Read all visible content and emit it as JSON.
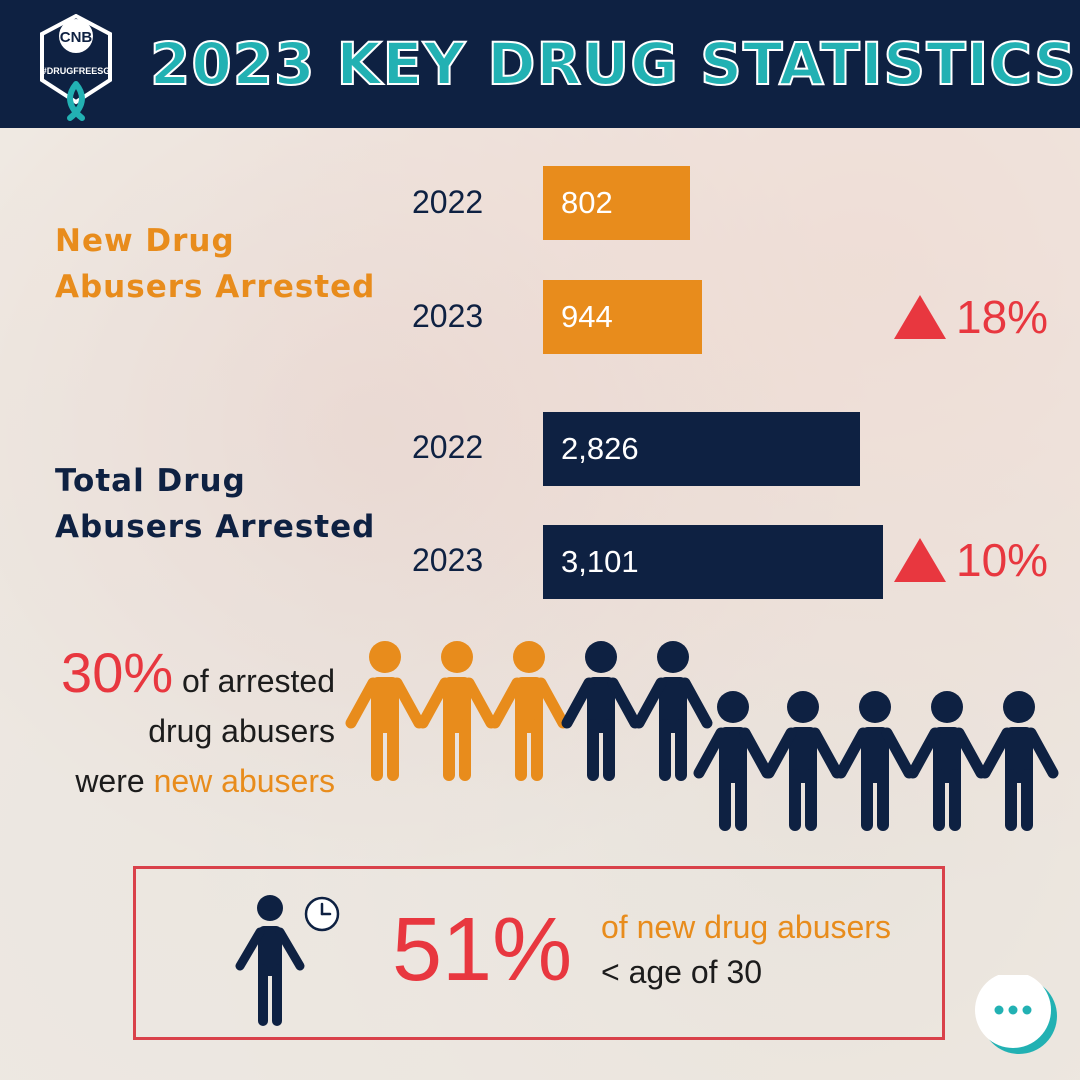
{
  "header": {
    "title": "2023 KEY DRUG STATISTICS",
    "logo_text": "CNB",
    "logo_tag": "#DRUGFREESG"
  },
  "colors": {
    "navy": "#0e2142",
    "orange": "#e88c1c",
    "red": "#e8373f",
    "teal": "#22b1b3"
  },
  "chart_data": {
    "type": "bar",
    "groups": [
      {
        "label": "New Drug Abusers Arrested",
        "color": "#e88c1c",
        "bars": [
          {
            "year": "2022",
            "value": 802,
            "label": "802"
          },
          {
            "year": "2023",
            "value": 944,
            "label": "944"
          }
        ],
        "change": "18%",
        "change_icon": "up-triangle-icon"
      },
      {
        "label": "Total Drug Abusers Arrested",
        "color": "#0e2142",
        "bars": [
          {
            "year": "2022",
            "value": 2826,
            "label": "2,826"
          },
          {
            "year": "2023",
            "value": 3101,
            "label": "3,101"
          }
        ],
        "change": "10%",
        "change_icon": "up-triangle-icon"
      }
    ]
  },
  "stat_new_share": {
    "percent": "30%",
    "text_1": "of arrested",
    "text_2": "drug abusers",
    "text_3": "were",
    "text_4": "new abusers",
    "pictogram": {
      "total": 10,
      "highlighted": 3,
      "icon": "person-icon"
    }
  },
  "stat_age": {
    "percent": "51%",
    "line_1": "of new drug abusers",
    "line_2": "< age of 30",
    "icons": [
      "person-icon",
      "clock-icon"
    ]
  },
  "chat_button": {
    "icon": "more-options-icon"
  }
}
